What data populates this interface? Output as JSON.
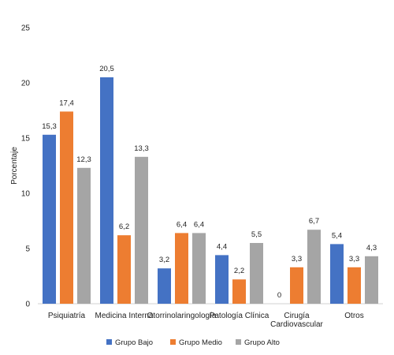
{
  "chart_data": {
    "type": "bar",
    "categories": [
      [
        "Psiquiatría"
      ],
      [
        "Medicina Interna"
      ],
      [
        "Otorrinolaringología"
      ],
      [
        "Patología Clínica"
      ],
      [
        "Cirugía",
        "Cardiovascular"
      ],
      [
        "Otros"
      ]
    ],
    "series": [
      {
        "name": "Grupo Bajo",
        "color": "#4472C4",
        "values": [
          15.3,
          20.5,
          3.2,
          4.4,
          0,
          5.4
        ],
        "labels": [
          "15,3",
          "20,5",
          "3,2",
          "4,4",
          "0",
          "5,4"
        ]
      },
      {
        "name": "Grupo Medio",
        "color": "#ED7D31",
        "values": [
          17.4,
          6.2,
          6.4,
          2.2,
          3.3,
          3.3
        ],
        "labels": [
          "17,4",
          "6,2",
          "6,4",
          "2,2",
          "3,3",
          "3,3"
        ]
      },
      {
        "name": "Grupo Alto",
        "color": "#A5A5A5",
        "values": [
          12.3,
          13.3,
          6.4,
          5.5,
          6.7,
          4.3
        ],
        "labels": [
          "12,3",
          "13,3",
          "6,4",
          "5,5",
          "6,7",
          "4,3"
        ]
      }
    ],
    "ylabel": "Porcentaje",
    "xlabel": "",
    "title": "",
    "ylim": [
      0,
      25
    ],
    "yticks": [
      0,
      5,
      10,
      15,
      20,
      25
    ],
    "grid": false,
    "legend_position": "bottom"
  }
}
